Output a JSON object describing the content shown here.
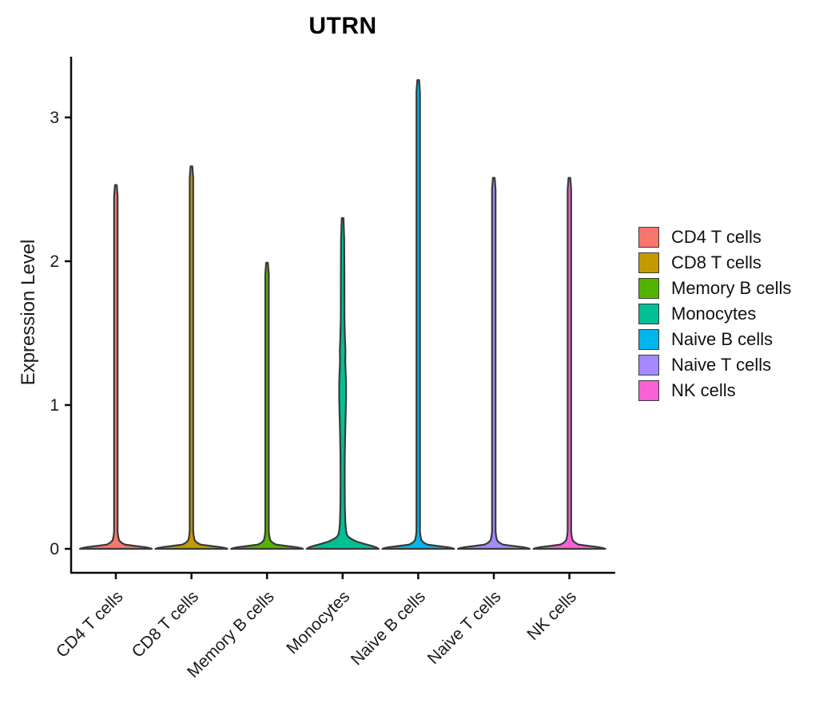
{
  "chart_data": {
    "type": "violin",
    "title": "UTRN",
    "ylabel": "Expression Level",
    "xlabel": "",
    "yticks": [
      0,
      1,
      2,
      3
    ],
    "ylim": [
      -0.17,
      3.45
    ],
    "grid": false,
    "legend_position": "right",
    "axis_color": "#0a0a0a",
    "violin_outline_color": "#3a3a3a",
    "categories": [
      "CD4 T cells",
      "CD8 T cells",
      "Memory B cells",
      "Monocytes",
      "Naive B cells",
      "Naive T cells",
      "NK cells"
    ],
    "series": [
      {
        "name": "CD4 T cells",
        "color": "#F8766D",
        "max": 2.53,
        "profile": [
          [
            0,
            45
          ],
          [
            0.006,
            42
          ],
          [
            0.012,
            36
          ],
          [
            0.02,
            24
          ],
          [
            0.03,
            11
          ],
          [
            0.045,
            6.5
          ],
          [
            0.06,
            4
          ],
          [
            0.09,
            2.8
          ],
          [
            0.12,
            2.2
          ],
          [
            2.45,
            2.2
          ],
          [
            2.53,
            1.1
          ]
        ]
      },
      {
        "name": "CD8 T cells",
        "color": "#C49A00",
        "max": 2.66,
        "profile": [
          [
            0,
            45
          ],
          [
            0.006,
            42
          ],
          [
            0.012,
            36
          ],
          [
            0.02,
            24
          ],
          [
            0.03,
            11
          ],
          [
            0.045,
            6.5
          ],
          [
            0.06,
            4
          ],
          [
            0.09,
            2.8
          ],
          [
            0.12,
            2.2
          ],
          [
            2.58,
            2.2
          ],
          [
            2.66,
            1.1
          ]
        ]
      },
      {
        "name": "Memory B cells",
        "color": "#53B400",
        "max": 1.99,
        "profile": [
          [
            0,
            45
          ],
          [
            0.006,
            42
          ],
          [
            0.012,
            36
          ],
          [
            0.02,
            24
          ],
          [
            0.03,
            11
          ],
          [
            0.045,
            6.5
          ],
          [
            0.06,
            4
          ],
          [
            0.09,
            2.8
          ],
          [
            0.12,
            2.2
          ],
          [
            1.91,
            2.2
          ],
          [
            1.99,
            1.1
          ]
        ]
      },
      {
        "name": "Monocytes",
        "color": "#00C094",
        "max": 2.3,
        "profile": [
          [
            0,
            45
          ],
          [
            0.01,
            42
          ],
          [
            0.02,
            37
          ],
          [
            0.033,
            28
          ],
          [
            0.05,
            18
          ],
          [
            0.065,
            12
          ],
          [
            0.083,
            7.2
          ],
          [
            0.1,
            5.2
          ],
          [
            0.13,
            4.2
          ],
          [
            0.18,
            3.4
          ],
          [
            0.3,
            2.8
          ],
          [
            0.45,
            2.6
          ],
          [
            0.65,
            2.7
          ],
          [
            0.85,
            3.4
          ],
          [
            0.95,
            3.9
          ],
          [
            1.05,
            4.3
          ],
          [
            1.15,
            4.3
          ],
          [
            1.22,
            3.9
          ],
          [
            1.3,
            3.3
          ],
          [
            1.38,
            3.5
          ],
          [
            1.46,
            2.9
          ],
          [
            1.6,
            2.3
          ],
          [
            1.9,
            2.2
          ],
          [
            2.15,
            2.0
          ],
          [
            2.3,
            1.1
          ]
        ]
      },
      {
        "name": "Naive B cells",
        "color": "#00B6EB",
        "max": 3.26,
        "profile": [
          [
            0,
            45
          ],
          [
            0.006,
            42
          ],
          [
            0.012,
            36
          ],
          [
            0.02,
            24
          ],
          [
            0.03,
            11
          ],
          [
            0.045,
            6.5
          ],
          [
            0.06,
            4
          ],
          [
            0.09,
            2.8
          ],
          [
            0.12,
            2.2
          ],
          [
            3.18,
            2.2
          ],
          [
            3.26,
            1.1
          ]
        ]
      },
      {
        "name": "Naive T cells",
        "color": "#A58AFF",
        "max": 2.58,
        "profile": [
          [
            0,
            45
          ],
          [
            0.006,
            42
          ],
          [
            0.012,
            36
          ],
          [
            0.02,
            24
          ],
          [
            0.03,
            11
          ],
          [
            0.045,
            6.5
          ],
          [
            0.06,
            4
          ],
          [
            0.09,
            2.8
          ],
          [
            0.12,
            2.2
          ],
          [
            2.5,
            2.2
          ],
          [
            2.58,
            1.1
          ]
        ]
      },
      {
        "name": "NK cells",
        "color": "#FB61D7",
        "max": 2.58,
        "profile": [
          [
            0,
            45
          ],
          [
            0.006,
            42
          ],
          [
            0.012,
            36
          ],
          [
            0.02,
            24
          ],
          [
            0.03,
            11
          ],
          [
            0.045,
            6.5
          ],
          [
            0.06,
            4
          ],
          [
            0.09,
            2.8
          ],
          [
            0.12,
            2.2
          ],
          [
            2.5,
            2.2
          ],
          [
            2.58,
            1.1
          ]
        ]
      }
    ],
    "legend": [
      {
        "label": "CD4 T cells",
        "color": "#F8766D"
      },
      {
        "label": "CD8 T cells",
        "color": "#C49A00"
      },
      {
        "label": "Memory B cells",
        "color": "#53B400"
      },
      {
        "label": "Monocytes",
        "color": "#00C094"
      },
      {
        "label": "Naive B cells",
        "color": "#00B6EB"
      },
      {
        "label": "Naive T cells",
        "color": "#A58AFF"
      },
      {
        "label": "NK cells",
        "color": "#FB61D7"
      }
    ]
  }
}
